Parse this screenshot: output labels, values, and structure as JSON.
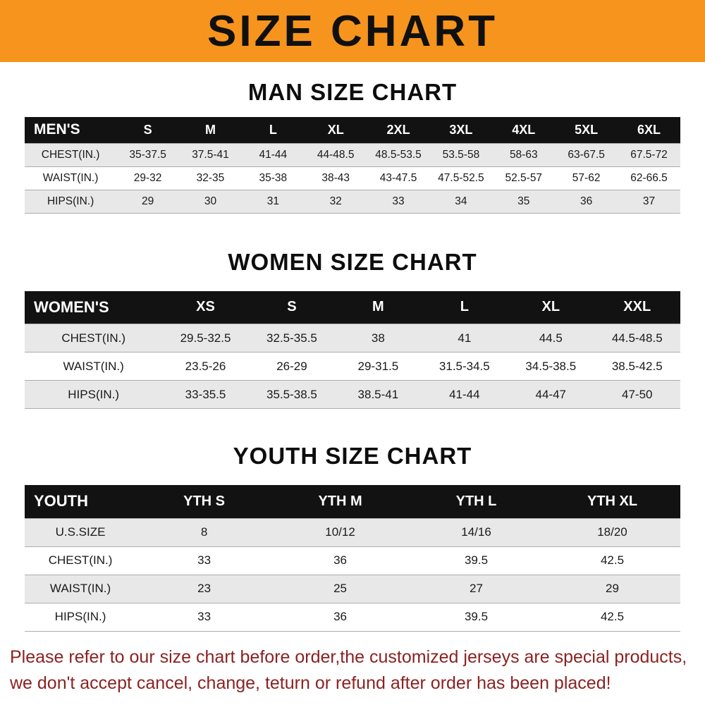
{
  "banner": {
    "title": "SIZE CHART"
  },
  "sections": [
    {
      "heading": "MAN SIZE CHART",
      "table": {
        "header": [
          "MEN'S",
          "S",
          "M",
          "L",
          "XL",
          "2XL",
          "3XL",
          "4XL",
          "5XL",
          "6XL"
        ],
        "rows": [
          [
            "CHEST(IN.)",
            "35-37.5",
            "37.5-41",
            "41-44",
            "44-48.5",
            "48.5-53.5",
            "53.5-58",
            "58-63",
            "63-67.5",
            "67.5-72"
          ],
          [
            "WAIST(IN.)",
            "29-32",
            "32-35",
            "35-38",
            "38-43",
            "43-47.5",
            "47.5-52.5",
            "52.5-57",
            "57-62",
            "62-66.5"
          ],
          [
            "HIPS(IN.)",
            "29",
            "30",
            "31",
            "32",
            "33",
            "34",
            "35",
            "36",
            "37"
          ]
        ]
      }
    },
    {
      "heading": "WOMEN SIZE CHART",
      "table": {
        "header": [
          "WOMEN'S",
          "XS",
          "S",
          "M",
          "L",
          "XL",
          "XXL"
        ],
        "rows": [
          [
            "CHEST(IN.)",
            "29.5-32.5",
            "32.5-35.5",
            "38",
            "41",
            "44.5",
            "44.5-48.5"
          ],
          [
            "WAIST(IN.)",
            "23.5-26",
            "26-29",
            "29-31.5",
            "31.5-34.5",
            "34.5-38.5",
            "38.5-42.5"
          ],
          [
            "HIPS(IN.)",
            "33-35.5",
            "35.5-38.5",
            "38.5-41",
            "41-44",
            "44-47",
            "47-50"
          ]
        ]
      }
    },
    {
      "heading": "YOUTH SIZE CHART",
      "table": {
        "header": [
          "YOUTH",
          "YTH S",
          "YTH M",
          "YTH L",
          "YTH XL"
        ],
        "rows": [
          [
            "U.S.SIZE",
            "8",
            "10/12",
            "14/16",
            "18/20"
          ],
          [
            "CHEST(IN.)",
            "33",
            "36",
            "39.5",
            "42.5"
          ],
          [
            "WAIST(IN.)",
            "23",
            "25",
            "27",
            "29"
          ],
          [
            "HIPS(IN.)",
            "33",
            "36",
            "39.5",
            "42.5"
          ]
        ]
      }
    }
  ],
  "footer": {
    "line1": "Please refer to our size chart before order,the customized jerseys are special products,",
    "line2": "we don't accept cancel, change, teturn or refund after order has been placed!"
  },
  "colors": {
    "banner_bg": "#F7941D",
    "table_header_bg": "#121212",
    "row_stripe": "#e8e8e8",
    "notice_text": "#8b2222"
  }
}
